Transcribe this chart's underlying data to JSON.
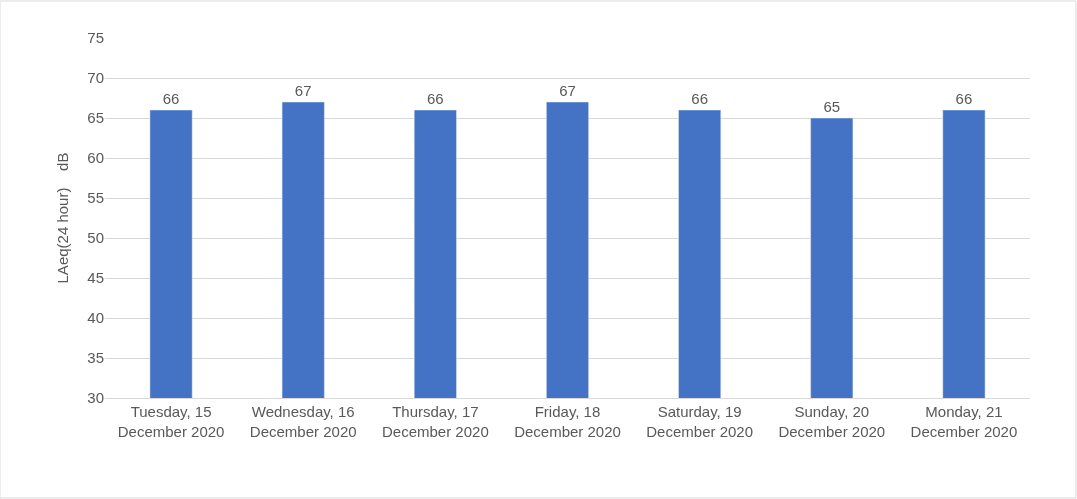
{
  "chart_data": {
    "type": "bar",
    "ylabel": "LAeq(24 hour)    dB",
    "categories": [
      "Tuesday, 15\nDecember 2020",
      "Wednesday, 16\nDecember 2020",
      "Thursday, 17\nDecember 2020",
      "Friday, 18\nDecember 2020",
      "Saturday, 19\nDecember 2020",
      "Sunday, 20\nDecember 2020",
      "Monday, 21\nDecember 2020"
    ],
    "values": [
      66,
      67,
      66,
      67,
      66,
      65,
      66
    ],
    "color": "#4472c4",
    "ylim": [
      30,
      75
    ],
    "yticks": [
      30,
      35,
      40,
      45,
      50,
      55,
      60,
      65,
      70,
      75
    ],
    "grid": "y",
    "data_labels": true,
    "legend": false
  }
}
